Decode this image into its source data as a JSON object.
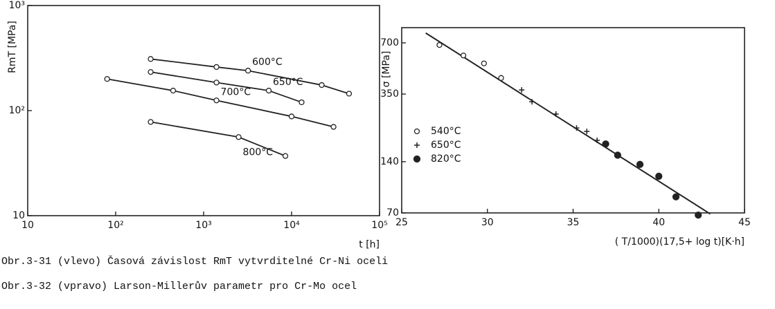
{
  "chart_data": [
    {
      "type": "line",
      "log_x": true,
      "log_y": true,
      "x_label": "t [h]",
      "y_label": "RmT [MPa]",
      "xlim": [
        10,
        100000
      ],
      "ylim": [
        10,
        1000
      ],
      "xticks": [
        10,
        {
          "value": 100,
          "label": "10²"
        },
        {
          "value": 1000,
          "label": "10³"
        },
        {
          "value": 10000,
          "label": "10⁴"
        },
        {
          "value": 100000,
          "label": "10⁵"
        }
      ],
      "yticks": [
        10,
        {
          "value": 100,
          "label": "10²"
        },
        {
          "value": 1000,
          "label": "10³"
        }
      ],
      "color": "#222",
      "series": [
        {
          "name": "600°C",
          "x": [
            250,
            1400,
            3200,
            22000,
            45000
          ],
          "values": [
            310,
            260,
            240,
            175,
            145
          ]
        },
        {
          "name": "650°C",
          "x": [
            250,
            1400,
            5500,
            13000
          ],
          "values": [
            233,
            185,
            155,
            120
          ]
        },
        {
          "name": "700°C",
          "x": [
            80,
            450,
            1400,
            10000,
            30000
          ],
          "values": [
            200,
            155,
            125,
            88,
            70
          ]
        },
        {
          "name": "800°C",
          "x": [
            250,
            2500,
            8500
          ],
          "values": [
            78,
            56,
            37
          ]
        }
      ]
    },
    {
      "type": "scatter",
      "log_y": true,
      "x_label": "( T/1000)(17,5+ log t)[K·h]",
      "y_label": "σ [MPa]",
      "xlim": [
        25,
        45
      ],
      "ylim": [
        70,
        860
      ],
      "xticks": [
        25,
        30,
        35,
        40,
        45
      ],
      "yticks": [
        70,
        140,
        350,
        700
      ],
      "color": "#222",
      "series": [
        {
          "name": "540°C",
          "marker": "open-circle",
          "x": [
            27.2,
            28.6,
            29.8,
            30.8
          ],
          "values": [
            680,
            590,
            530,
            435
          ]
        },
        {
          "name": "650°C",
          "marker": "plus",
          "x": [
            32.0,
            32.6,
            34.0,
            35.2,
            35.8,
            36.4
          ],
          "values": [
            370,
            315,
            267,
            221,
            211,
            187
          ]
        },
        {
          "name": "820°C",
          "marker": "filled-circle",
          "x": [
            36.9,
            37.6,
            38.9,
            40.0,
            41.0,
            42.3
          ],
          "values": [
            178,
            153,
            135,
            115,
            87,
            68
          ]
        }
      ],
      "fit_line": {
        "x": [
          26.4,
          43.0
        ],
        "values": [
          800,
          69
        ]
      }
    }
  ],
  "captions": [
    "Obr.3-31 (vlevo)  Časová závislost RmT vytvrditelné Cr-Ni oceli",
    "Obr.3-32 (vpravo) Larson-Millerův parametr pro Cr-Mo ocel"
  ]
}
